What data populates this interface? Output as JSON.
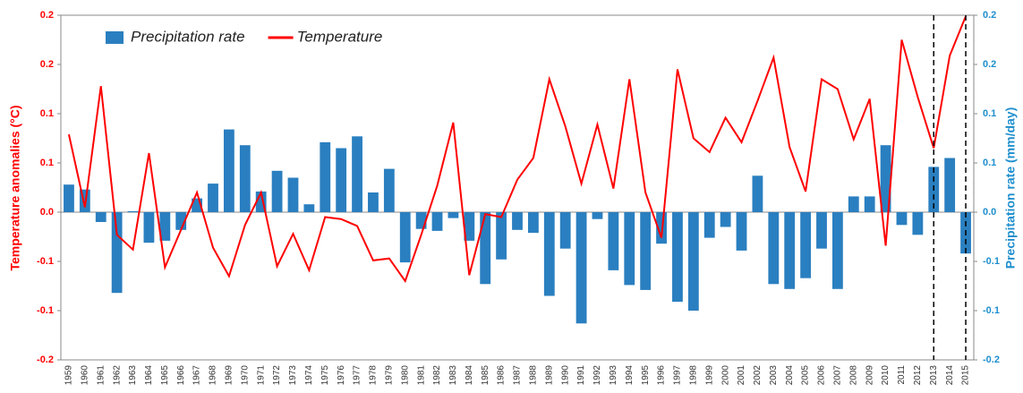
{
  "chart_data": {
    "type": "bar-line",
    "legend": "top-left",
    "y_label": "Temperature anomalies (°C)",
    "y2_label": "Precipitation rate (mm/day)",
    "categories": [
      "1959",
      "1960",
      "1961",
      "1962",
      "1963",
      "1964",
      "1965",
      "1966",
      "1967",
      "1968",
      "1969",
      "1970",
      "1971",
      "1972",
      "1973",
      "1974",
      "1975",
      "1976",
      "1977",
      "1978",
      "1979",
      "1980",
      "1981",
      "1982",
      "1983",
      "1984",
      "1985",
      "1986",
      "1987",
      "1988",
      "1989",
      "1990",
      "1991",
      "1992",
      "1993",
      "1994",
      "1995",
      "1996",
      "1997",
      "1998",
      "1999",
      "2000",
      "2001",
      "2002",
      "2003",
      "2004",
      "2005",
      "2006",
      "2007",
      "2008",
      "2009",
      "2010",
      "2011",
      "2012",
      "2013",
      "2014",
      "2015"
    ],
    "series": [
      {
        "name": "Precipitation rate",
        "kind": "bar",
        "axis": "y2",
        "color": "#2a7fc0",
        "values": [
          0.028,
          0.023,
          -0.01,
          -0.082,
          0.001,
          -0.031,
          -0.029,
          -0.018,
          0.014,
          0.029,
          0.084,
          0.068,
          0.021,
          0.042,
          0.035,
          0.008,
          0.071,
          0.065,
          0.077,
          0.02,
          0.044,
          -0.051,
          -0.017,
          -0.019,
          -0.006,
          -0.029,
          -0.073,
          -0.048,
          -0.018,
          -0.021,
          -0.085,
          -0.037,
          -0.113,
          -0.007,
          -0.059,
          -0.074,
          -0.079,
          -0.032,
          -0.091,
          -0.1,
          -0.026,
          -0.015,
          -0.039,
          0.037,
          -0.073,
          -0.078,
          -0.067,
          -0.037,
          -0.078,
          0.016,
          0.016,
          0.068,
          -0.013,
          -0.023,
          0.046,
          0.055,
          -0.042
        ]
      },
      {
        "name": "Temperature",
        "kind": "line",
        "color": "#ff0000",
        "values": [
          0.079,
          0.005,
          0.128,
          -0.023,
          -0.038,
          0.06,
          -0.056,
          -0.018,
          0.02,
          -0.036,
          -0.065,
          -0.013,
          0.02,
          -0.055,
          -0.022,
          -0.059,
          -0.005,
          -0.007,
          -0.014,
          -0.049,
          -0.047,
          -0.07,
          -0.023,
          0.027,
          0.091,
          -0.064,
          -0.002,
          -0.005,
          0.033,
          0.055,
          0.135,
          0.087,
          0.029,
          0.089,
          0.024,
          0.135,
          0.02,
          -0.026,
          0.145,
          0.075,
          0.061,
          0.096,
          0.071,
          0.113,
          0.157,
          0.066,
          0.021,
          0.135,
          0.125,
          0.074,
          0.115,
          -0.034,
          0.175,
          0.117,
          0.065,
          0.159,
          0.199
        ]
      }
    ],
    "ylim": [
      -0.15,
      0.2
    ],
    "yticks": [
      {
        "value": -0.15,
        "label": "-0.2"
      },
      -0.1,
      {
        "value": -0.05,
        "label": "-0.1"
      },
      {
        "value": 0,
        "label": "0.0"
      },
      {
        "value": 0.05,
        "label": "0.1"
      },
      0.1,
      {
        "value": 0.15,
        "label": "0.2"
      },
      0.2
    ],
    "y2lim": [
      -0.15,
      0.2
    ],
    "y2ticks": [
      {
        "value": -0.15,
        "label": "-0.2"
      },
      -0.1,
      {
        "value": -0.05,
        "label": "-0.1"
      },
      {
        "value": 0,
        "label": "0.0"
      },
      {
        "value": 0.05,
        "label": "0.1"
      },
      0.1,
      {
        "value": 0.15,
        "label": "0.2"
      },
      0.2
    ],
    "vlines": [
      "2013",
      "2015"
    ]
  }
}
